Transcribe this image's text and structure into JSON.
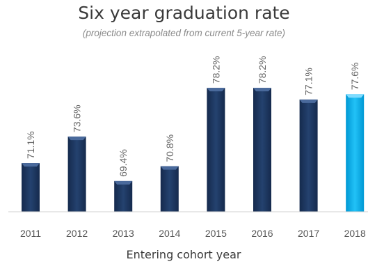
{
  "chart_data": {
    "type": "bar",
    "title": "Six year graduation rate",
    "subtitle": "(projection extrapolated from current 5-year rate)",
    "xlabel": "Entering cohort year",
    "ylabel": "",
    "categories": [
      "2011",
      "2012",
      "2013",
      "2014",
      "2015",
      "2016",
      "2017",
      "2018"
    ],
    "values": [
      71.1,
      73.6,
      69.4,
      70.8,
      78.2,
      78.2,
      77.1,
      77.6
    ],
    "value_labels": [
      "71.1%",
      "73.6%",
      "69.4%",
      "70.8%",
      "78.2%",
      "78.2%",
      "77.1%",
      "77.6%"
    ],
    "bar_colors": [
      "#1f3864",
      "#1f3864",
      "#1f3864",
      "#1f3864",
      "#1f3864",
      "#1f3864",
      "#1f3864",
      "#00b0f0"
    ],
    "projected_category": "2018",
    "ylim": [
      66.5,
      79
    ],
    "grid": false,
    "legend": "none"
  }
}
